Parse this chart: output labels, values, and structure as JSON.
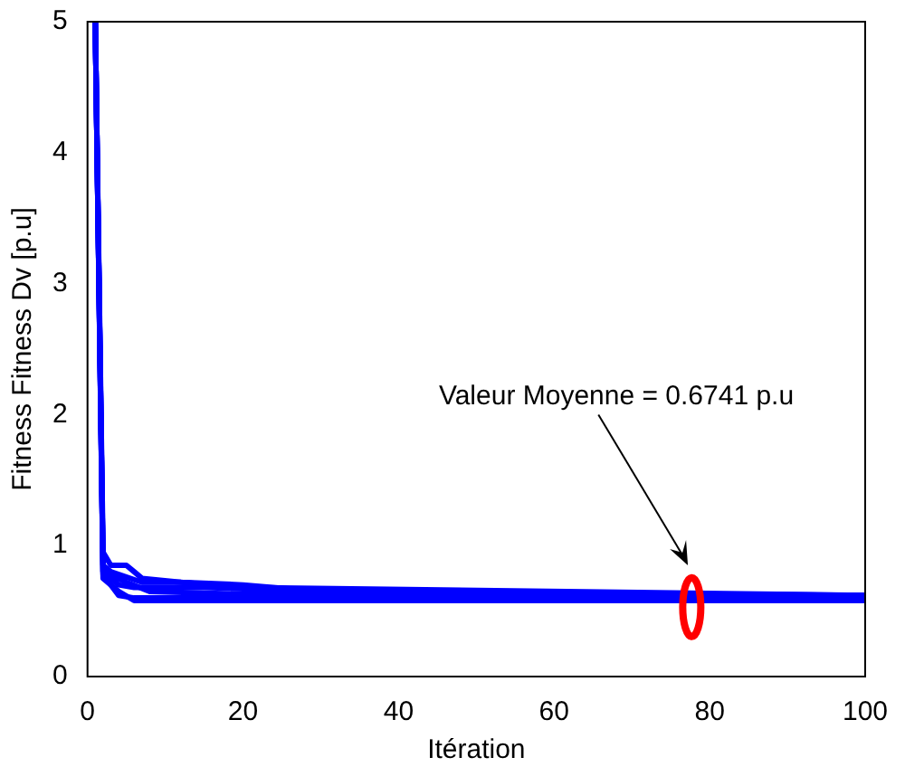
{
  "chart_data": {
    "type": "line",
    "xlabel": "Itération",
    "ylabel": "Fitness Fitness Dv [p.u]",
    "xlim": [
      0,
      100
    ],
    "ylim": [
      0,
      5
    ],
    "xticks": [
      0,
      20,
      40,
      60,
      80,
      100
    ],
    "yticks": [
      0,
      1,
      2,
      3,
      4,
      5
    ],
    "grid": false,
    "legend": false,
    "annotations": [
      "Valeur Moyenne = 0.6741 p.u"
    ],
    "series": [
      {
        "color": "#0000ff",
        "x": [
          1,
          2,
          3,
          5,
          6,
          7,
          12,
          20,
          30,
          100
        ],
        "values": [
          5,
          0.95,
          0.85,
          0.85,
          0.8,
          0.75,
          0.72,
          0.7,
          0.65,
          0.62
        ]
      },
      {
        "color": "#0000ff",
        "x": [
          1,
          2,
          3,
          4,
          6,
          15,
          25,
          35,
          100
        ],
        "values": [
          5,
          0.8,
          0.75,
          0.7,
          0.68,
          0.68,
          0.66,
          0.64,
          0.62
        ]
      },
      {
        "color": "#0000ff",
        "x": [
          1,
          2,
          3,
          4,
          6,
          100
        ],
        "values": [
          5,
          0.78,
          0.7,
          0.62,
          0.6,
          0.6
        ]
      },
      {
        "color": "#0000ff",
        "x": [
          1,
          2,
          4,
          6,
          100
        ],
        "values": [
          5,
          0.75,
          0.65,
          0.58,
          0.58
        ]
      },
      {
        "color": "#0000ff",
        "x": [
          1,
          2,
          3,
          7,
          12,
          20,
          100
        ],
        "values": [
          5,
          0.85,
          0.8,
          0.72,
          0.72,
          0.68,
          0.62
        ]
      },
      {
        "color": "#0000ff",
        "x": [
          1,
          2,
          5,
          8,
          20,
          100
        ],
        "values": [
          5,
          0.8,
          0.72,
          0.65,
          0.63,
          0.6
        ]
      }
    ]
  }
}
